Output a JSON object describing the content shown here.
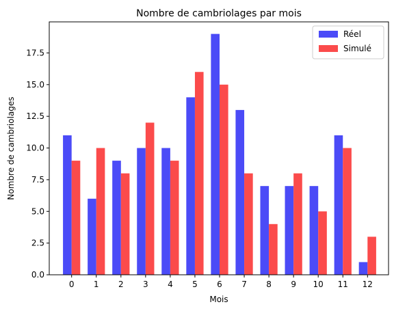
{
  "chart_data": {
    "type": "bar",
    "title": "Nombre de cambriolages par mois",
    "xlabel": "Mois",
    "ylabel": "Nombre de cambriolages",
    "categories": [
      "0",
      "1",
      "2",
      "3",
      "4",
      "5",
      "6",
      "7",
      "8",
      "9",
      "10",
      "11",
      "12"
    ],
    "series": [
      {
        "name": "Réel",
        "color": "#4b4bf7",
        "values": [
          11,
          6,
          9,
          10,
          10,
          14,
          19,
          13,
          7,
          7,
          7,
          11,
          1
        ]
      },
      {
        "name": "Simulé",
        "color": "#fb4b4b",
        "values": [
          9,
          10,
          8,
          12,
          9,
          16,
          15,
          8,
          4,
          8,
          5,
          10,
          3
        ]
      }
    ],
    "ylim": [
      0,
      19.95
    ],
    "yticks": [
      "0.0",
      "2.5",
      "5.0",
      "7.5",
      "10.0",
      "12.5",
      "15.0",
      "17.5"
    ],
    "legend": "top-right",
    "grid": false
  }
}
